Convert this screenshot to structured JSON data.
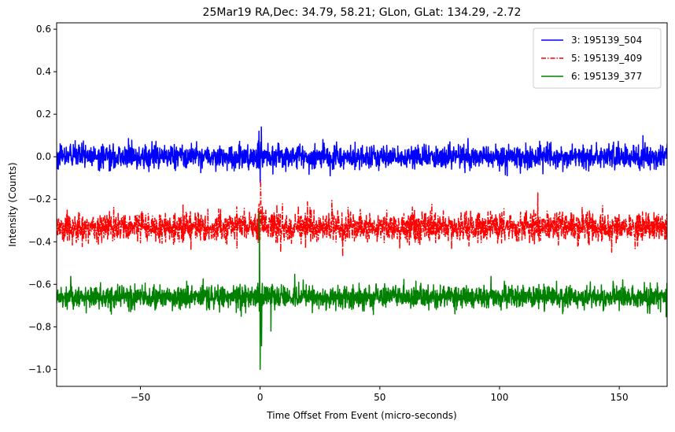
{
  "chart_data": {
    "type": "line",
    "title": "25Mar19 RA,Dec:   34.79,  58.21; GLon, GLat:  134.29,  -2.72",
    "xlabel": "Time Offset From Event (micro-seconds)",
    "ylabel": "Intensity (Counts)",
    "xlim": [
      -85,
      170
    ],
    "ylim": [
      -1.08,
      0.63
    ],
    "xticks": [
      -50,
      0,
      50,
      100,
      150
    ],
    "xtick_labels": [
      "−50",
      "0",
      "50",
      "100",
      "150"
    ],
    "yticks": [
      -1.0,
      -0.8,
      -0.6,
      -0.4,
      -0.2,
      0.0,
      0.2,
      0.4,
      0.6
    ],
    "ytick_labels": [
      "−1.0",
      "−0.8",
      "−0.6",
      "−0.4",
      "−0.2",
      "0.0",
      "0.2",
      "0.4",
      "0.6"
    ],
    "grid": false,
    "legend_position": "top-right",
    "series": [
      {
        "name": "3: 195139_504",
        "color": "#0000ff",
        "style": "solid",
        "baseline": 0.0,
        "noise_amplitude": 0.035,
        "spikes": [
          {
            "x": -0.5,
            "y": 0.12
          },
          {
            "x": 0.5,
            "y": 0.14
          },
          {
            "x": 0.0,
            "y": -0.12
          }
        ]
      },
      {
        "name": "5: 195139_409",
        "color": "#ff0000",
        "style": "dashdot",
        "baseline": -0.33,
        "noise_amplitude": 0.045,
        "spikes": [
          {
            "x": 0.2,
            "y": -0.11
          },
          {
            "x": 34.5,
            "y": -0.47
          },
          {
            "x": 116.0,
            "y": -0.17
          }
        ]
      },
      {
        "name": "6: 195139_377",
        "color": "#008000",
        "style": "solid",
        "baseline": -0.66,
        "noise_amplitude": 0.035,
        "spikes": [
          {
            "x": -0.3,
            "y": -0.26
          },
          {
            "x": 0.0,
            "y": -1.0
          },
          {
            "x": 0.6,
            "y": -0.89
          },
          {
            "x": 4.5,
            "y": -0.82
          },
          {
            "x": 18.0,
            "y": -0.58
          }
        ]
      }
    ]
  }
}
